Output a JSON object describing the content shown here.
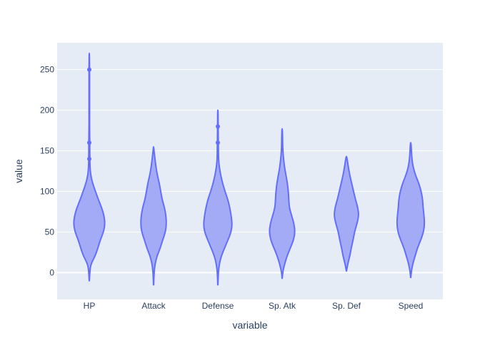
{
  "chart_data": {
    "type": "violin",
    "xlabel": "variable",
    "ylabel": "value",
    "categories": [
      "HP",
      "Attack",
      "Defense",
      "Sp. Atk",
      "Sp. Def",
      "Speed"
    ],
    "ylim": [
      -33,
      283
    ],
    "yticks": [
      0,
      50,
      100,
      150,
      200,
      250
    ],
    "grid": true,
    "legend": "none",
    "colors": {
      "plot_bg": "#e5ecf6",
      "grid": "#ffffff",
      "violin_fill": "#a4abf6",
      "violin_line": "#636efa",
      "text": "#2a3f5f"
    },
    "series": [
      {
        "category": "HP",
        "profile": [
          [
            -10,
            0.2
          ],
          [
            0,
            1
          ],
          [
            10,
            3
          ],
          [
            20,
            12
          ],
          [
            30,
            18
          ],
          [
            40,
            23
          ],
          [
            50,
            30
          ],
          [
            60,
            33
          ],
          [
            70,
            31
          ],
          [
            80,
            26
          ],
          [
            90,
            19
          ],
          [
            100,
            13
          ],
          [
            110,
            7
          ],
          [
            120,
            3
          ],
          [
            130,
            1.5
          ],
          [
            140,
            1.2
          ],
          [
            150,
            1
          ],
          [
            160,
            1
          ],
          [
            170,
            0.8
          ],
          [
            180,
            0.6
          ],
          [
            190,
            0.6
          ],
          [
            200,
            0.6
          ],
          [
            210,
            0.6
          ],
          [
            220,
            0.6
          ],
          [
            230,
            0.6
          ],
          [
            240,
            0.6
          ],
          [
            250,
            0.6
          ],
          [
            260,
            0.4
          ],
          [
            270,
            0.2
          ]
        ],
        "outliers": [
          250,
          160,
          140
        ]
      },
      {
        "category": "Attack",
        "profile": [
          [
            -15,
            0.2
          ],
          [
            0,
            1
          ],
          [
            10,
            3
          ],
          [
            20,
            7
          ],
          [
            30,
            14
          ],
          [
            40,
            19
          ],
          [
            50,
            25
          ],
          [
            60,
            27
          ],
          [
            70,
            26
          ],
          [
            80,
            23
          ],
          [
            90,
            18
          ],
          [
            100,
            15
          ],
          [
            110,
            12
          ],
          [
            120,
            8
          ],
          [
            130,
            5
          ],
          [
            140,
            3
          ],
          [
            150,
            1
          ],
          [
            155,
            0.3
          ]
        ],
        "outliers": []
      },
      {
        "category": "Defense",
        "profile": [
          [
            -15,
            0.2
          ],
          [
            0,
            1
          ],
          [
            10,
            3
          ],
          [
            20,
            7
          ],
          [
            30,
            14
          ],
          [
            40,
            21
          ],
          [
            50,
            28
          ],
          [
            60,
            30
          ],
          [
            70,
            28
          ],
          [
            80,
            25
          ],
          [
            90,
            21
          ],
          [
            100,
            15
          ],
          [
            110,
            10
          ],
          [
            120,
            6
          ],
          [
            130,
            3
          ],
          [
            140,
            1.5
          ],
          [
            150,
            1.2
          ],
          [
            160,
            1
          ],
          [
            170,
            0.8
          ],
          [
            180,
            0.6
          ],
          [
            190,
            0.5
          ],
          [
            200,
            0.3
          ]
        ],
        "outliers": [
          180,
          160
        ]
      },
      {
        "category": "Sp. Atk",
        "profile": [
          [
            -7,
            0.2
          ],
          [
            0,
            1
          ],
          [
            10,
            5
          ],
          [
            20,
            10
          ],
          [
            30,
            17
          ],
          [
            40,
            24
          ],
          [
            50,
            27
          ],
          [
            60,
            25
          ],
          [
            70,
            20
          ],
          [
            80,
            15
          ],
          [
            90,
            14
          ],
          [
            100,
            13
          ],
          [
            110,
            11
          ],
          [
            120,
            8
          ],
          [
            130,
            5
          ],
          [
            140,
            3
          ],
          [
            150,
            1.5
          ],
          [
            160,
            1
          ],
          [
            170,
            0.8
          ],
          [
            177,
            0.3
          ]
        ],
        "outliers": []
      },
      {
        "category": "Sp. Def",
        "profile": [
          [
            2,
            0.2
          ],
          [
            10,
            2.5
          ],
          [
            20,
            7
          ],
          [
            30,
            10
          ],
          [
            40,
            14
          ],
          [
            50,
            17
          ],
          [
            60,
            22
          ],
          [
            70,
            26
          ],
          [
            80,
            24
          ],
          [
            90,
            19
          ],
          [
            100,
            15
          ],
          [
            110,
            11
          ],
          [
            120,
            7
          ],
          [
            130,
            4
          ],
          [
            140,
            1.5
          ],
          [
            143,
            0.3
          ]
        ],
        "outliers": []
      },
      {
        "category": "Speed",
        "profile": [
          [
            -6,
            0.2
          ],
          [
            0,
            1
          ],
          [
            10,
            4
          ],
          [
            20,
            9
          ],
          [
            30,
            14
          ],
          [
            40,
            21
          ],
          [
            50,
            27
          ],
          [
            60,
            29
          ],
          [
            70,
            28
          ],
          [
            80,
            26
          ],
          [
            90,
            25
          ],
          [
            100,
            22
          ],
          [
            110,
            17
          ],
          [
            120,
            10
          ],
          [
            130,
            5
          ],
          [
            140,
            2.5
          ],
          [
            150,
            1.5
          ],
          [
            160,
            0.5
          ]
        ],
        "outliers": []
      }
    ]
  }
}
